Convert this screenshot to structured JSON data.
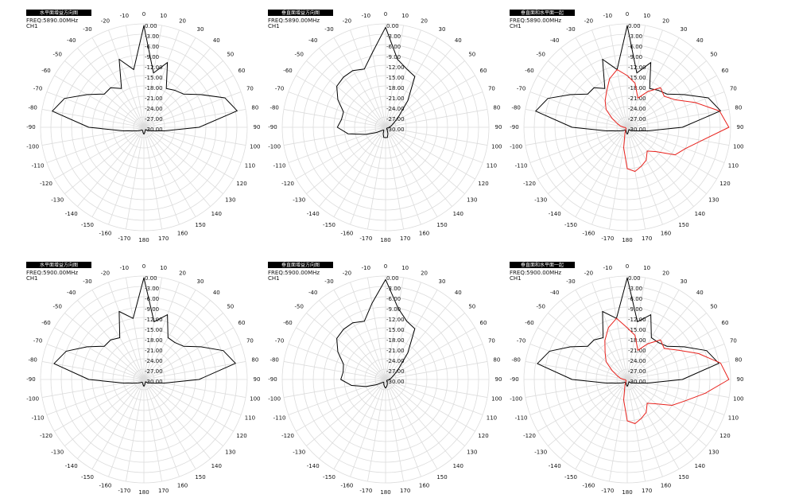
{
  "chart_data": [
    {
      "type": "polar",
      "title": "水平面增益方向图",
      "subtitle": "FREQ:5890.00MHz",
      "channel": "CH1",
      "x": [
        0,
        10,
        20,
        30,
        40,
        50,
        60,
        70,
        80,
        90,
        100,
        110,
        120,
        130,
        140,
        150,
        160,
        170,
        180,
        -170,
        -160,
        -150,
        -140,
        -130,
        -120,
        -110,
        -100,
        -90,
        -80,
        -70,
        -60,
        -50,
        -40,
        -30,
        -20,
        -10
      ],
      "series": [
        {
          "color": "#000000",
          "values": [
            -0.5,
            -14,
            -10,
            -17,
            -16,
            -15,
            -11,
            -5,
            -2.5,
            -14,
            -24,
            -27,
            -28,
            -28.5,
            -29,
            -29,
            -29,
            -28.5,
            -28,
            -28.5,
            -29,
            -29,
            -29,
            -28.5,
            -28,
            -27,
            -24,
            -14,
            -3,
            -5.5,
            -11,
            -15,
            -15,
            -17,
            -9,
            -13
          ]
        }
      ],
      "rlim": [
        -30,
        0
      ],
      "rticks": [
        {
          "value": 0,
          "label": "0.00"
        },
        {
          "value": -3,
          "label": "-3.00"
        },
        {
          "value": -6,
          "label": "-6.00"
        },
        {
          "value": -9,
          "label": "-9.00"
        },
        {
          "value": -12,
          "label": "-12.00"
        },
        {
          "value": -15,
          "label": "-15.00"
        },
        {
          "value": -18,
          "label": "-18.00"
        },
        {
          "value": -21,
          "label": "-21.00"
        },
        {
          "value": -24,
          "label": "-24.00"
        },
        {
          "value": -27,
          "label": "-27.00"
        },
        {
          "value": -30,
          "label": "-30.00"
        }
      ],
      "xticks": [
        0,
        10,
        20,
        30,
        40,
        50,
        60,
        70,
        80,
        90,
        100,
        110,
        120,
        130,
        140,
        150,
        160,
        170,
        180,
        -170,
        -160,
        -150,
        -140,
        -130,
        -120,
        -110,
        -100,
        -90,
        -80,
        -70,
        -60,
        -50,
        -40,
        -30,
        -20,
        -10
      ]
    },
    {
      "type": "polar",
      "title": "垂直面增益方向图",
      "subtitle": "FREQ:5890.00MHz",
      "channel": "CH1",
      "x": [
        0,
        10,
        20,
        30,
        40,
        50,
        60,
        70,
        80,
        90,
        100,
        110,
        120,
        130,
        140,
        150,
        160,
        170,
        180,
        -170,
        -160,
        -150,
        -140,
        -130,
        -120,
        -110,
        -100,
        -90,
        -80,
        -70,
        -60,
        -50,
        -40,
        -30,
        -20,
        -10
      ],
      "series": [
        {
          "color": "#000000",
          "values": [
            -1,
            -10,
            -12,
            -13,
            -20,
            -25,
            -27,
            -28,
            -28.5,
            -29,
            -29,
            -29.5,
            -29.5,
            -29.5,
            -29.5,
            -29,
            -28,
            -27,
            -27,
            -27,
            -28,
            -29,
            -29,
            -28.5,
            -27,
            -24,
            -19,
            -16,
            -17,
            -17,
            -14,
            -11.5,
            -11,
            -11,
            -12,
            -8
          ]
        }
      ],
      "rlim": [
        -30,
        0
      ],
      "rticks": [
        {
          "value": 0,
          "label": "0.00"
        },
        {
          "value": -3,
          "label": "-3.00"
        },
        {
          "value": -6,
          "label": "-6.00"
        },
        {
          "value": -9,
          "label": "-9.00"
        },
        {
          "value": -12,
          "label": "-12.00"
        },
        {
          "value": -15,
          "label": "-15.00"
        },
        {
          "value": -18,
          "label": "-18.00"
        },
        {
          "value": -21,
          "label": "-21.00"
        },
        {
          "value": -24,
          "label": "-24.00"
        },
        {
          "value": -27,
          "label": "-27.00"
        },
        {
          "value": -30,
          "label": "-30.00"
        }
      ],
      "xticks": [
        0,
        10,
        20,
        30,
        40,
        50,
        60,
        70,
        80,
        90,
        100,
        110,
        120,
        130,
        140,
        150,
        160,
        170,
        180,
        -170,
        -160,
        -150,
        -140,
        -130,
        -120,
        -110,
        -100,
        -90,
        -80,
        -70,
        -60,
        -50,
        -40,
        -30,
        -20,
        -10
      ]
    },
    {
      "type": "polar",
      "title": "垂直面和水平面一起",
      "subtitle": "FREQ:5890.00MHz",
      "channel": "CH1",
      "x": [
        0,
        10,
        20,
        30,
        40,
        50,
        60,
        70,
        80,
        90,
        100,
        110,
        120,
        130,
        140,
        150,
        160,
        170,
        180,
        -170,
        -160,
        -150,
        -140,
        -130,
        -120,
        -110,
        -100,
        -90,
        -80,
        -70,
        -60,
        -50,
        -40,
        -30,
        -20,
        -10
      ],
      "series": [
        {
          "color": "#000000",
          "values": [
            -0.5,
            -14,
            -10,
            -17,
            -16,
            -15,
            -11,
            -5,
            -2.5,
            -14,
            -24,
            -27,
            -28,
            -28.5,
            -29,
            -29,
            -29,
            -28.5,
            -28,
            -28.5,
            -29,
            -29,
            -29,
            -28.5,
            -28,
            -27,
            -24,
            -14,
            -3,
            -5.5,
            -11,
            -15,
            -15,
            -17,
            -9,
            -13
          ]
        },
        {
          "color": "#e8211c",
          "values": [
            -15,
            -17,
            -21,
            -18,
            -15,
            -16,
            -14,
            -9,
            -2.8,
            -0.5,
            -8,
            -12,
            -14,
            -19,
            -21,
            -19,
            -18,
            -17,
            -18,
            -24,
            -28,
            -29,
            -29.5,
            -29.5,
            -29.5,
            -29.5,
            -29.5,
            -29,
            -28,
            -27,
            -25,
            -22,
            -20,
            -18,
            -15,
            -13
          ]
        }
      ],
      "rlim": [
        -30,
        0
      ],
      "rticks": [
        {
          "value": 0,
          "label": "0.00"
        },
        {
          "value": -3,
          "label": "-3.00"
        },
        {
          "value": -6,
          "label": "-6.00"
        },
        {
          "value": -9,
          "label": "-9.00"
        },
        {
          "value": -12,
          "label": "-12.00"
        },
        {
          "value": -15,
          "label": "-15.00"
        },
        {
          "value": -18,
          "label": "-18.00"
        },
        {
          "value": -21,
          "label": "-21.00"
        },
        {
          "value": -24,
          "label": "-24.00"
        },
        {
          "value": -27,
          "label": "-27.00"
        },
        {
          "value": -30,
          "label": "-30.00"
        }
      ],
      "xticks": [
        0,
        10,
        20,
        30,
        40,
        50,
        60,
        70,
        80,
        90,
        100,
        110,
        120,
        130,
        140,
        150,
        160,
        170,
        180,
        -170,
        -160,
        -150,
        -140,
        -130,
        -120,
        -110,
        -100,
        -90,
        -80,
        -70,
        -60,
        -50,
        -40,
        -30,
        -20,
        -10
      ]
    },
    {
      "type": "polar",
      "title": "水平面增益方向图",
      "subtitle": "FREQ:5900.00MHz",
      "channel": "CH1",
      "x": [
        0,
        10,
        20,
        30,
        40,
        50,
        60,
        70,
        80,
        90,
        100,
        110,
        120,
        130,
        140,
        150,
        160,
        170,
        180,
        -170,
        -160,
        -150,
        -140,
        -130,
        -120,
        -110,
        -100,
        -90,
        -80,
        -70,
        -60,
        -50,
        -40,
        -30,
        -20,
        -10
      ],
      "series": [
        {
          "color": "#000000",
          "values": [
            -0.5,
            -13,
            -10,
            -16,
            -16,
            -15,
            -11,
            -5.5,
            -3,
            -14,
            -24,
            -27,
            -28,
            -28.5,
            -29,
            -29,
            -29,
            -28.5,
            -28,
            -28.5,
            -29,
            -29,
            -29,
            -28.5,
            -28,
            -27,
            -24,
            -14,
            -3.5,
            -6,
            -11,
            -15,
            -15,
            -16,
            -9,
            -12
          ]
        }
      ],
      "rlim": [
        -30,
        0
      ],
      "rticks": [
        {
          "value": 0,
          "label": "0.00"
        },
        {
          "value": -3,
          "label": "-3.00"
        },
        {
          "value": -6,
          "label": "-6.00"
        },
        {
          "value": -9,
          "label": "-9.00"
        },
        {
          "value": -12,
          "label": "-12.00"
        },
        {
          "value": -15,
          "label": "-15.00"
        },
        {
          "value": -18,
          "label": "-18.00"
        },
        {
          "value": -21,
          "label": "-21.00"
        },
        {
          "value": -24,
          "label": "-24.00"
        },
        {
          "value": -27,
          "label": "-27.00"
        },
        {
          "value": -30,
          "label": "-30.00"
        }
      ],
      "xticks": [
        0,
        10,
        20,
        30,
        40,
        50,
        60,
        70,
        80,
        90,
        100,
        110,
        120,
        130,
        140,
        150,
        160,
        170,
        180,
        -170,
        -160,
        -150,
        -140,
        -130,
        -120,
        -110,
        -100,
        -90,
        -80,
        -70,
        -60,
        -50,
        -40,
        -30,
        -20,
        -10
      ]
    },
    {
      "type": "polar",
      "title": "垂直面增益方向图",
      "subtitle": "FREQ:5900.00MHz",
      "channel": "CH1",
      "x": [
        0,
        10,
        20,
        30,
        40,
        50,
        60,
        70,
        80,
        90,
        100,
        110,
        120,
        130,
        140,
        150,
        160,
        170,
        180,
        -170,
        -160,
        -150,
        -140,
        -130,
        -120,
        -110,
        -100,
        -90,
        -80,
        -70,
        -60,
        -50,
        -40,
        -30,
        -20,
        -10
      ],
      "series": [
        {
          "color": "#000000",
          "values": [
            -1,
            -9,
            -12,
            -13,
            -20,
            -25,
            -27,
            -28,
            -28.5,
            -29,
            -29,
            -29.5,
            -29.5,
            -29.5,
            -29.5,
            -29,
            -28.5,
            -28,
            -27.5,
            -28,
            -28.5,
            -29,
            -29,
            -28.5,
            -27,
            -24,
            -20,
            -17,
            -17.5,
            -17,
            -14,
            -11.5,
            -11,
            -11,
            -12,
            -7.5
          ]
        }
      ],
      "rlim": [
        -30,
        0
      ],
      "rticks": [
        {
          "value": 0,
          "label": "0.00"
        },
        {
          "value": -3,
          "label": "-3.00"
        },
        {
          "value": -6,
          "label": "-6.00"
        },
        {
          "value": -9,
          "label": "-9.00"
        },
        {
          "value": -12,
          "label": "-12.00"
        },
        {
          "value": -15,
          "label": "-15.00"
        },
        {
          "value": -18,
          "label": "-18.00"
        },
        {
          "value": -21,
          "label": "-21.00"
        },
        {
          "value": -24,
          "label": "-24.00"
        },
        {
          "value": -27,
          "label": "-27.00"
        },
        {
          "value": -30,
          "label": "-30.00"
        }
      ],
      "xticks": [
        0,
        10,
        20,
        30,
        40,
        50,
        60,
        70,
        80,
        90,
        100,
        110,
        120,
        130,
        140,
        150,
        160,
        170,
        180,
        -170,
        -160,
        -150,
        -140,
        -130,
        -120,
        -110,
        -100,
        -90,
        -80,
        -70,
        -60,
        -50,
        -40,
        -30,
        -20,
        -10
      ]
    },
    {
      "type": "polar",
      "title": "垂直面和水平面一起",
      "subtitle": "FREQ:5900.00MHz",
      "channel": "CH1",
      "x": [
        0,
        10,
        20,
        30,
        40,
        50,
        60,
        70,
        80,
        90,
        100,
        110,
        120,
        130,
        140,
        150,
        160,
        170,
        180,
        -170,
        -160,
        -150,
        -140,
        -130,
        -120,
        -110,
        -100,
        -90,
        -80,
        -70,
        -60,
        -50,
        -40,
        -30,
        -20,
        -10
      ],
      "series": [
        {
          "color": "#000000",
          "values": [
            -0.5,
            -13,
            -10,
            -16,
            -16,
            -15,
            -11,
            -5.5,
            -3,
            -14,
            -24,
            -27,
            -28,
            -28.5,
            -29,
            -29,
            -29,
            -28.5,
            -28,
            -28.5,
            -29,
            -29,
            -29,
            -28.5,
            -28,
            -27,
            -24,
            -14,
            -3.5,
            -6,
            -11,
            -15,
            -15,
            -16,
            -9,
            -12
          ]
        },
        {
          "color": "#e8211c",
          "values": [
            -15,
            -17,
            -21,
            -18,
            -15,
            -16,
            -13,
            -8,
            -2.5,
            -0.5,
            -7,
            -12,
            -15,
            -19,
            -21,
            -19,
            -18,
            -17,
            -18,
            -24,
            -28,
            -29,
            -29.5,
            -29.5,
            -29.5,
            -29.5,
            -29.5,
            -29,
            -28,
            -27,
            -25,
            -22,
            -20,
            -17,
            -14,
            -12
          ]
        }
      ],
      "rlim": [
        -30,
        0
      ],
      "rticks": [
        {
          "value": 0,
          "label": "0.00"
        },
        {
          "value": -3,
          "label": "-3.00"
        },
        {
          "value": -6,
          "label": "-6.00"
        },
        {
          "value": -9,
          "label": "-9.00"
        },
        {
          "value": -12,
          "label": "-12.00"
        },
        {
          "value": -15,
          "label": "-15.00"
        },
        {
          "value": -18,
          "label": "-18.00"
        },
        {
          "value": -21,
          "label": "-21.00"
        },
        {
          "value": -24,
          "label": "-24.00"
        },
        {
          "value": -27,
          "label": "-27.00"
        },
        {
          "value": -30,
          "label": "-30.00"
        }
      ],
      "xticks": [
        0,
        10,
        20,
        30,
        40,
        50,
        60,
        70,
        80,
        90,
        100,
        110,
        120,
        130,
        140,
        150,
        160,
        170,
        180,
        -170,
        -160,
        -150,
        -140,
        -130,
        -120,
        -110,
        -100,
        -90,
        -80,
        -70,
        -60,
        -50,
        -40,
        -30,
        -20,
        -10
      ]
    }
  ]
}
